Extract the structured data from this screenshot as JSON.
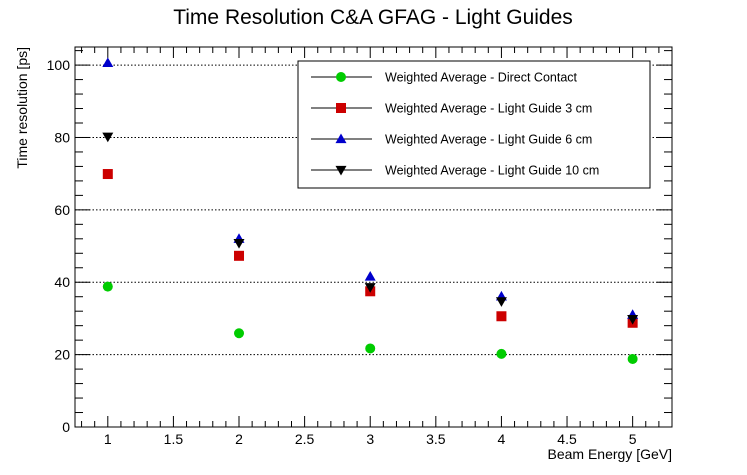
{
  "chart_data": {
    "type": "scatter",
    "title": "Time Resolution C&A GFAG - Light Guides",
    "xlabel": "Beam Energy [GeV]",
    "ylabel": "Time resolution [ps]",
    "xlim": [
      0.75,
      5.3
    ],
    "ylim": [
      0,
      105
    ],
    "xticks": [
      1,
      1.5,
      2,
      2.5,
      3,
      3.5,
      4,
      4.5,
      5
    ],
    "xtick_labels": [
      "1",
      "1.5",
      "2",
      "2.5",
      "3",
      "3.5",
      "4",
      "4.5",
      "5"
    ],
    "yticks": [
      0,
      20,
      40,
      60,
      80,
      100
    ],
    "ytick_labels": [
      "0",
      "20",
      "40",
      "60",
      "80",
      "100"
    ],
    "grid": "horizontal-dotted",
    "legend_position": "top-right",
    "series": [
      {
        "name": "Weighted Average - Direct Contact",
        "marker": "circle",
        "color": "#00cc00",
        "x": [
          1,
          2,
          3,
          4,
          5
        ],
        "y": [
          38.8,
          25.9,
          21.7,
          20.2,
          18.8
        ]
      },
      {
        "name": "Weighted Average - Light Guide 3 cm",
        "marker": "square",
        "color": "#cc0000",
        "x": [
          1,
          2,
          3,
          4,
          5
        ],
        "y": [
          69.9,
          47.3,
          37.5,
          30.6,
          28.8
        ]
      },
      {
        "name": "Weighted Average - Light Guide 6 cm",
        "marker": "triangle-up",
        "color": "#0000cc",
        "x": [
          1,
          2,
          3,
          4,
          5
        ],
        "y": [
          100.6,
          52.0,
          41.6,
          36.1,
          31.0
        ]
      },
      {
        "name": "Weighted Average - Light Guide 10 cm",
        "marker": "triangle-down",
        "color": "#000000",
        "x": [
          1,
          2,
          3,
          4,
          5
        ],
        "y": [
          80.2,
          50.8,
          38.6,
          34.7,
          29.8
        ]
      }
    ]
  }
}
